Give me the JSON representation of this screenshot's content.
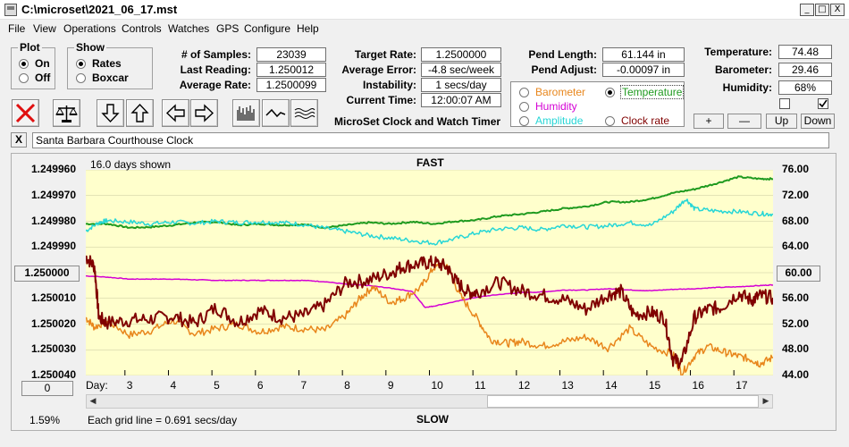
{
  "window": {
    "title": "C:\\microset\\2021_06_17.mst",
    "minimize_glyph": "_",
    "maximize_glyph": "□",
    "close_glyph": "X"
  },
  "menu": [
    "File",
    "View",
    "Operations",
    "Controls",
    "Watches",
    "GPS",
    "Configure",
    "Help"
  ],
  "plot_group": {
    "title": "Plot",
    "on_label": "On",
    "off_label": "Off",
    "selected": "On"
  },
  "show_group": {
    "title": "Show",
    "rates_label": "Rates",
    "boxcar_label": "Boxcar",
    "selected": "Rates"
  },
  "stats": {
    "samples_label": "# of Samples:",
    "samples_value": "23039",
    "last_reading_label": "Last Reading:",
    "last_reading_value": "1.250012",
    "average_rate_label": "Average Rate:",
    "average_rate_value": "1.2500099"
  },
  "rates": {
    "target_rate_label": "Target Rate:",
    "target_rate_value": "1.2500000",
    "average_error_label": "Average Error:",
    "average_error_value": "-4.8 sec/week",
    "instability_label": "Instability:",
    "instability_value": "1 secs/day",
    "current_time_label": "Current Time:",
    "current_time_value": "12:00:07 AM"
  },
  "pend": {
    "length_label": "Pend Length:",
    "length_value": "61.144 in",
    "adjust_label": "Pend Adjust:",
    "adjust_value": "-0.00097 in"
  },
  "app_name": "MicroSet Clock and Watch Timer",
  "series_options": {
    "barometer": "Barometer",
    "temperature": "Temperature",
    "humidity": "Humidity",
    "amplitude": "Amplitude",
    "clock_rate": "Clock rate",
    "selected": "Temperature",
    "colors": {
      "barometer": "#e8861c",
      "temperature": "#1f9a1f",
      "humidity": "#d400d4",
      "amplitude": "#26d6d6",
      "clock_rate": "#800000"
    }
  },
  "environment": {
    "temperature_label": "Temperature:",
    "temperature_value": "74.48",
    "barometer_label": "Barometer:",
    "barometer_value": "29.46",
    "humidity_label": "Humidity:",
    "humidity_value": "68%"
  },
  "env_buttons": {
    "plus": "+",
    "minus": "—",
    "up": "Up",
    "down": "Down"
  },
  "watch_name": "Santa Barbara Courthouse Clock",
  "clear_glyph": "X",
  "toolbar_icons": [
    "stop-icon",
    "balance-scale-icon",
    "arrow-down-icon",
    "arrow-up-icon",
    "arrow-left-icon",
    "arrow-right-icon",
    "bar-chart-icon",
    "wave-icon",
    "multi-wave-icon"
  ],
  "chart_data": {
    "type": "line",
    "header_left": "16.0 days shown",
    "top_label": "FAST",
    "bottom_label": "SLOW",
    "xlabel": "Day:",
    "x_ticks": [
      "3",
      "4",
      "5",
      "6",
      "7",
      "8",
      "9",
      "10",
      "11",
      "12",
      "13",
      "14",
      "15",
      "16",
      "17"
    ],
    "xlim": [
      2.0,
      17.8
    ],
    "y_left_ticks": [
      "1.249960",
      "1.249970",
      "1.249980",
      "1.249990",
      "1.250000",
      "1.250010",
      "1.250020",
      "1.250030",
      "1.250040"
    ],
    "y_left_button": "1.250000",
    "y_right_ticks": [
      "76.00",
      "72.00",
      "68.00",
      "64.00",
      "60.00",
      "56.00",
      "52.00",
      "48.00",
      "44.00"
    ],
    "y_right_button": "60.00",
    "ylim_right": [
      44,
      76
    ],
    "bottom_left_button": "0",
    "percent": "1.59%",
    "grid_note": "Each grid line = 0.691 secs/day",
    "series": [
      {
        "key": "temperature",
        "color": "#1f9a1f",
        "width": 2,
        "x": [
          2.0,
          2.5,
          3.0,
          3.5,
          4.0,
          4.5,
          5.0,
          5.5,
          6.0,
          6.5,
          7.0,
          7.5,
          8.0,
          8.5,
          9.0,
          9.5,
          10.0,
          10.5,
          11.0,
          11.5,
          12.0,
          12.5,
          13.0,
          13.5,
          14.0,
          14.5,
          15.0,
          15.5,
          16.0,
          16.5,
          17.0,
          17.5,
          17.8
        ],
        "y": [
          67.6,
          67.6,
          67.0,
          67.1,
          67.4,
          67.8,
          67.9,
          67.4,
          67.6,
          67.4,
          67.5,
          67.0,
          67.4,
          67.8,
          67.6,
          67.9,
          67.6,
          68.0,
          68.2,
          68.8,
          69.1,
          69.5,
          70.0,
          70.3,
          71.0,
          71.0,
          71.5,
          72.4,
          73.0,
          73.9,
          74.9,
          74.6,
          74.6
        ]
      },
      {
        "key": "amplitude",
        "color": "#26d6d6",
        "width": 1.5,
        "x": [
          2.0,
          2.3,
          2.5,
          3.0,
          3.5,
          4.0,
          4.5,
          5.0,
          5.5,
          6.0,
          6.5,
          7.0,
          7.5,
          8.0,
          8.5,
          9.0,
          9.5,
          10.0,
          10.5,
          11.0,
          11.5,
          12.0,
          12.5,
          13.0,
          13.5,
          14.0,
          14.5,
          15.0,
          15.5,
          15.8,
          16.0,
          16.5,
          17.0,
          17.5,
          17.8
        ],
        "y": [
          66.5,
          67.8,
          68.1,
          67.9,
          67.6,
          67.9,
          67.7,
          68.0,
          67.8,
          67.9,
          67.8,
          67.5,
          66.9,
          66.4,
          65.8,
          65.4,
          65.0,
          64.6,
          65.3,
          66.2,
          66.8,
          67.0,
          66.7,
          67.4,
          67.1,
          67.3,
          67.8,
          67.4,
          69.5,
          71.5,
          69.9,
          69.6,
          69.5,
          69.2,
          69.1
        ]
      },
      {
        "key": "humidity",
        "color": "#d400d4",
        "width": 1.5,
        "x": [
          2.0,
          2.5,
          3.0,
          3.5,
          4.0,
          4.5,
          5.0,
          5.5,
          6.0,
          6.5,
          7.0,
          7.5,
          8.0,
          8.5,
          9.0,
          9.5,
          9.8,
          10.0,
          10.5,
          11.0,
          11.5,
          12.0,
          12.5,
          13.0,
          13.5,
          14.0,
          14.5,
          15.0,
          15.5,
          16.0,
          16.5,
          17.0,
          17.5,
          17.8
        ],
        "y": [
          59.5,
          59.3,
          59.0,
          59.0,
          59.0,
          58.9,
          58.8,
          58.8,
          58.8,
          58.8,
          58.8,
          58.6,
          58.2,
          58.0,
          57.6,
          57.1,
          54.6,
          54.8,
          55.5,
          56.2,
          56.6,
          56.9,
          57.0,
          57.3,
          57.3,
          57.5,
          57.3,
          57.2,
          57.4,
          57.5,
          57.7,
          57.8,
          58.0,
          58.1
        ]
      },
      {
        "key": "barometer",
        "color": "#e8861c",
        "width": 1.5,
        "x": [
          2.0,
          2.2,
          2.5,
          3.0,
          3.5,
          4.0,
          4.5,
          5.0,
          5.5,
          6.0,
          6.5,
          7.0,
          7.5,
          8.0,
          8.3,
          8.6,
          9.0,
          9.3,
          9.7,
          10.0,
          10.3,
          10.6,
          11.0,
          11.3,
          11.7,
          12.0,
          12.5,
          13.0,
          13.5,
          14.0,
          14.5,
          15.0,
          15.5,
          15.7,
          16.0,
          16.3,
          16.7,
          17.0,
          17.3,
          17.5,
          17.8
        ],
        "y": [
          53.0,
          51.5,
          52.5,
          50.3,
          51.0,
          52.6,
          50.5,
          51.3,
          52.0,
          50.8,
          51.6,
          51.3,
          51.0,
          53.5,
          56.0,
          57.8,
          55.4,
          56.0,
          57.7,
          60.8,
          61.2,
          56.5,
          52.8,
          49.6,
          49.0,
          49.3,
          48.6,
          49.3,
          50.0,
          48.3,
          51.3,
          48.5,
          47.3,
          44.3,
          47.1,
          48.5,
          47.6,
          47.0,
          46.5,
          45.8,
          46.8
        ]
      },
      {
        "key": "clock_rate",
        "color": "#800000",
        "width": 2,
        "x": [
          2.0,
          2.2,
          2.3,
          2.5,
          3.0,
          3.5,
          4.0,
          4.5,
          5.0,
          5.5,
          6.0,
          6.5,
          7.0,
          7.5,
          8.0,
          8.5,
          9.0,
          9.3,
          9.7,
          10.0,
          10.3,
          10.5,
          10.8,
          11.0,
          11.5,
          12.0,
          12.5,
          13.0,
          13.5,
          14.0,
          14.3,
          14.6,
          15.0,
          15.3,
          15.5,
          15.7,
          16.0,
          16.3,
          16.6,
          17.0,
          17.3,
          17.5,
          17.8
        ],
        "y": [
          62.5,
          61.0,
          53.0,
          52.2,
          52.6,
          52.8,
          53.2,
          52.1,
          54.6,
          52.3,
          54.1,
          53.0,
          53.3,
          55.0,
          58.5,
          58.8,
          60.0,
          61.0,
          61.4,
          61.6,
          60.9,
          58.7,
          56.9,
          57.0,
          58.5,
          57.2,
          56.5,
          55.8,
          54.3,
          56.6,
          57.1,
          53.5,
          53.8,
          53.0,
          46.5,
          46.0,
          53.1,
          54.3,
          54.6,
          56.8,
          55.7,
          56.4,
          56.1
        ]
      }
    ]
  }
}
